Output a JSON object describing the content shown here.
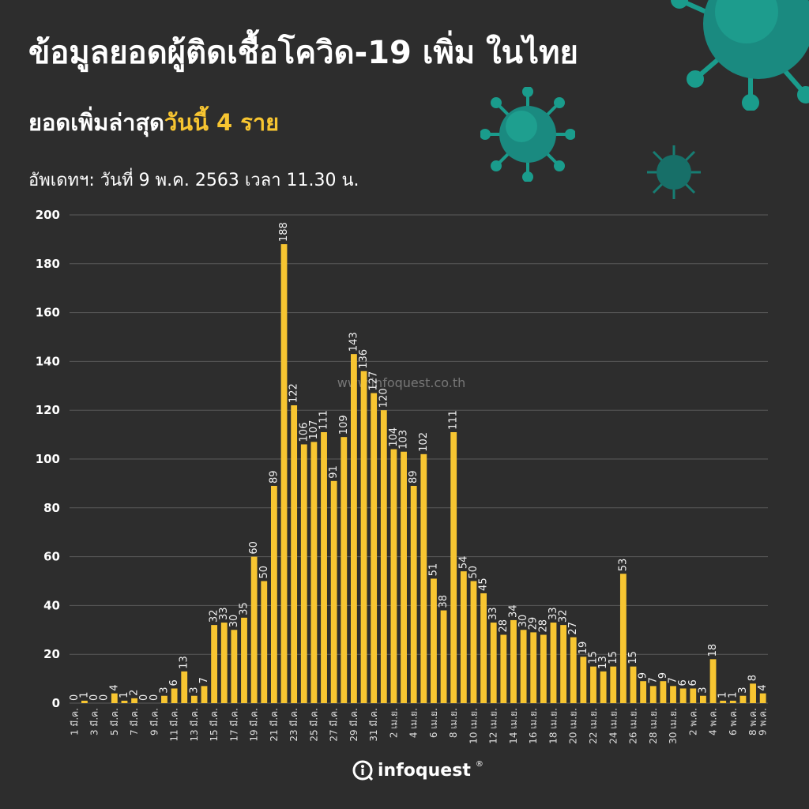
{
  "header": {
    "title": "ข้อมูลยอดผู้ติดเชื้อโควิด-19 เพิ่ม ในไทย",
    "subtitle_prefix": "ยอดเพิ่มล่าสุด",
    "subtitle_highlight": "วันนี้ 4 ราย",
    "updated": "อัพเดทฯ: วันที่  9 พ.ค. 2563 เวลา 11.30 น."
  },
  "watermark": "www.infoquest.co.th",
  "brand": {
    "name": "infoquest",
    "mark": "®"
  },
  "colors": {
    "background": "#2d2d2d",
    "bar": "#f7c531",
    "grid": "#5a5a5a",
    "label": "#f2f2f2",
    "virus": "#1a9c8c"
  },
  "chart_data": {
    "type": "bar",
    "ylim": [
      0,
      200
    ],
    "yticks": [
      0,
      20,
      40,
      60,
      80,
      100,
      120,
      140,
      160,
      180,
      200
    ],
    "grid": true,
    "categories": [
      "1 มี.ค.",
      "2 มี.ค.",
      "3 มี.ค.",
      "4 มี.ค.",
      "5 มี.ค.",
      "6 มี.ค.",
      "7 มี.ค.",
      "8 มี.ค.",
      "9 มี.ค.",
      "10 มี.ค.",
      "11 มี.ค.",
      "12 มี.ค.",
      "13 มี.ค.",
      "14 มี.ค.",
      "15 มี.ค.",
      "16 มี.ค.",
      "17 มี.ค.",
      "18 มี.ค.",
      "19 มี.ค.",
      "20 มี.ค.",
      "21 มี.ค.",
      "22 มี.ค.",
      "23 มี.ค.",
      "24 มี.ค.",
      "25 มี.ค.",
      "26 มี.ค.",
      "27 มี.ค.",
      "28 มี.ค.",
      "29 มี.ค.",
      "30 มี.ค.",
      "31 มี.ค.",
      "1 เม.ย.",
      "2 เม.ย.",
      "3 เม.ย.",
      "4 เม.ย.",
      "5 เม.ย.",
      "6 เม.ย.",
      "7 เม.ย.",
      "8 เม.ย.",
      "9 เม.ย.",
      "10 เม.ย.",
      "11 เม.ย.",
      "12 เม.ย.",
      "13 เม.ย.",
      "14 เม.ย.",
      "15 เม.ย.",
      "16 เม.ย.",
      "17 เม.ย.",
      "18 เม.ย.",
      "19 เม.ย.",
      "20 เม.ย.",
      "21 เม.ย.",
      "22 เม.ย.",
      "23 เม.ย.",
      "24 เม.ย.",
      "25 เม.ย.",
      "26 เม.ย.",
      "27 เม.ย.",
      "28 เม.ย.",
      "29 เม.ย.",
      "30 เม.ย.",
      "1 พ.ค.",
      "2 พ.ค.",
      "3 พ.ค.",
      "4 พ.ค.",
      "5 พ.ค.",
      "6 พ.ค.",
      "7 พ.ค.",
      "8 พ.ค.",
      "9 พ.ค."
    ],
    "xtick_labels": [
      "1 มี.ค.",
      "",
      "3 มี.ค.",
      "",
      "5 มี.ค.",
      "",
      "7 มี.ค.",
      "",
      "9 มี.ค.",
      "",
      "11 มี.ค.",
      "",
      "13 มี.ค.",
      "",
      "15 มี.ค.",
      "",
      "17 มี.ค.",
      "",
      "19 มี.ค.",
      "",
      "21 มี.ค.",
      "",
      "23 มี.ค.",
      "",
      "25 มี.ค.",
      "",
      "27 มี.ค.",
      "",
      "29 มี.ค.",
      "",
      "31 มี.ค.",
      "",
      "2 เม.ย.",
      "",
      "4 เม.ย.",
      "",
      "6 เม.ย.",
      "",
      "8 เม.ย.",
      "",
      "10 เม.ย.",
      "",
      "12 เม.ย.",
      "",
      "14 เม.ย.",
      "",
      "16 เม.ย.",
      "",
      "18 เม.ย.",
      "",
      "20 เม.ย.",
      "",
      "22 เม.ย.",
      "",
      "24 เม.ย.",
      "",
      "26 เม.ย.",
      "",
      "28 เม.ย.",
      "",
      "30 เม.ย.",
      "",
      "2 พ.ค.",
      "",
      "4 พ.ค.",
      "",
      "6 พ.ค.",
      "",
      "8 พ.ค.",
      "9 พ.ค."
    ],
    "values": [
      0,
      1,
      0,
      0,
      4,
      1,
      2,
      0,
      0,
      3,
      6,
      13,
      3,
      7,
      32,
      33,
      30,
      35,
      60,
      50,
      89,
      188,
      122,
      106,
      107,
      111,
      91,
      109,
      143,
      136,
      127,
      120,
      104,
      103,
      89,
      102,
      51,
      38,
      111,
      54,
      50,
      45,
      33,
      28,
      34,
      30,
      29,
      28,
      33,
      32,
      27,
      19,
      15,
      13,
      15,
      53,
      15,
      9,
      7,
      9,
      7,
      6,
      6,
      3,
      18,
      1,
      1,
      3,
      8,
      4
    ]
  }
}
